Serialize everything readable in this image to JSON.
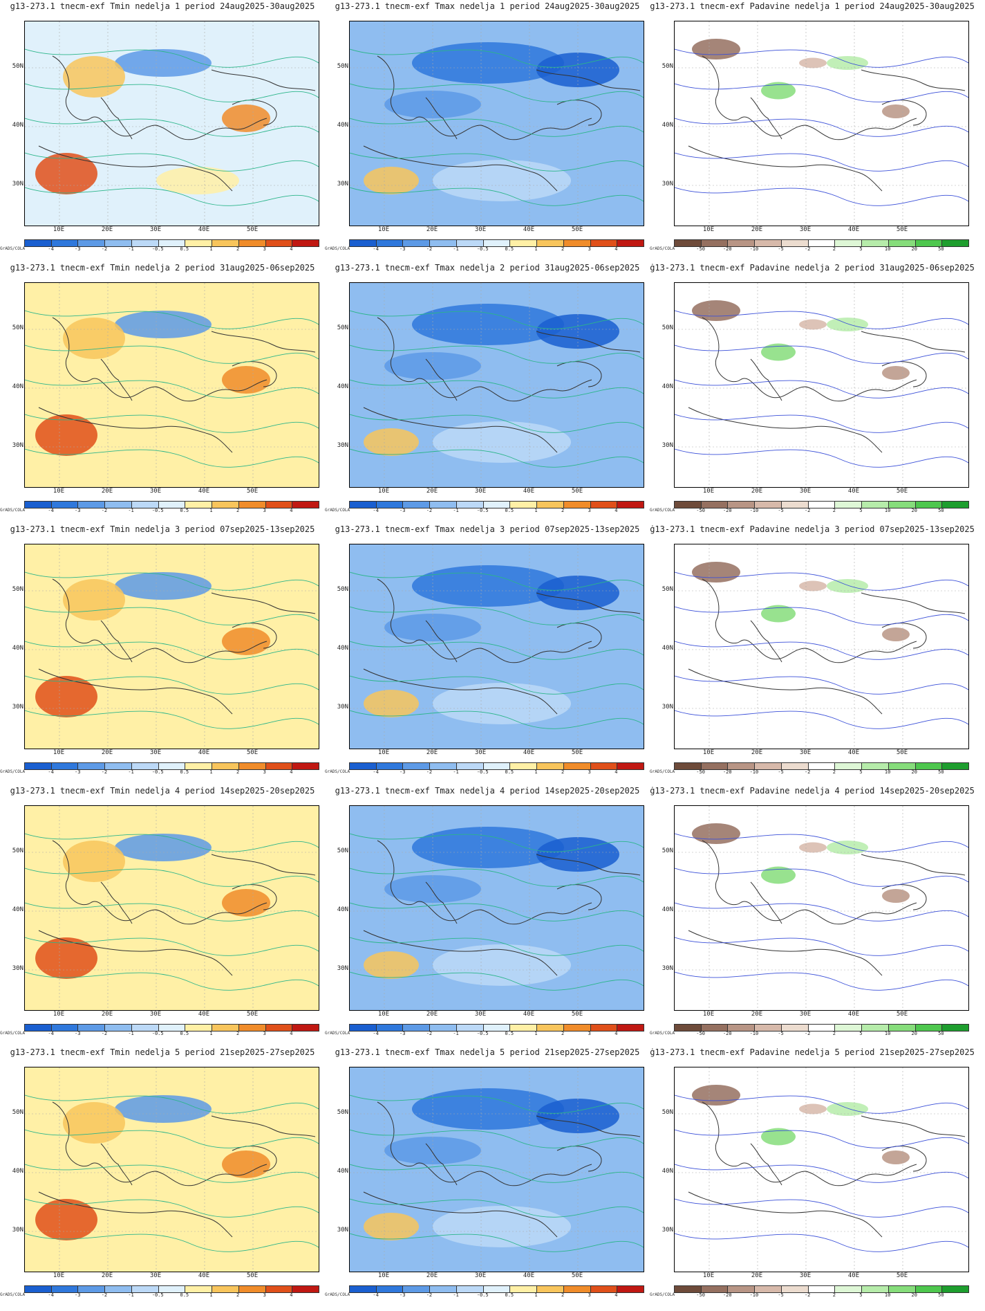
{
  "credit": "GrADS/COLA",
  "lat_labels": [
    "50N",
    "40N",
    "30N"
  ],
  "lon_labels": [
    "10E",
    "20E",
    "30E",
    "40E",
    "50E"
  ],
  "colorbars": {
    "temp": {
      "labels": [
        "-4",
        "-3",
        "-2",
        "-1",
        "-0.5",
        "0.5",
        "1",
        "2",
        "3",
        "4"
      ],
      "colors": [
        "#1a5fd0",
        "#2f78dc",
        "#5d9ae6",
        "#8fbdf0",
        "#bcd9f7",
        "#e0f1fb",
        "#fff0a6",
        "#f8c55c",
        "#f08c2a",
        "#e0501a",
        "#c01812"
      ]
    },
    "precip": {
      "labels": [
        "-50",
        "-20",
        "-10",
        "-5",
        "-2",
        "2",
        "5",
        "10",
        "20",
        "50"
      ],
      "colors": [
        "#6e4b3a",
        "#957060",
        "#b89585",
        "#d7b9aa",
        "#ecdccf",
        "#ffffff",
        "#def7d6",
        "#b6ecaa",
        "#86dd7b",
        "#4ec74e",
        "#1e9e2e"
      ]
    }
  },
  "panels": [
    {
      "var": "tmin",
      "title": "g13-273.1 tnecm-exf Tmin nedelja 1 period 24aug2025-30aug2025"
    },
    {
      "var": "tmax",
      "title": "g13-273.1 tnecm-exf Tmax nedelja 1 period 24aug2025-30aug2025"
    },
    {
      "var": "precip",
      "title": "g13-273.1 tnecm-exf Padavine nedelja 1 period 24aug2025-30aug2025"
    },
    {
      "var": "tmin",
      "title": "g13-273.1 tnecm-exf Tmin nedelja 2 period 31aug2025-06sep2025"
    },
    {
      "var": "tmax",
      "title": "g13-273.1 tnecm-exf Tmax nedelja 2 period 31aug2025-06sep2025"
    },
    {
      "var": "precip",
      "title": "ġ13-273.1 tnecm-exf Padavine nedelja 2 period 31aug2025-06sep2025"
    },
    {
      "var": "tmin",
      "title": "g13-273.1 tnecm-exf Tmin nedelja 3 period 07sep2025-13sep2025"
    },
    {
      "var": "tmax",
      "title": "g13-273.1 tnecm-exf Tmax nedelja 3 period 07sep2025-13sep2025"
    },
    {
      "var": "precip",
      "title": "ġ13-273.1 tnecm-exf Padavine nedelja 3 period 07sep2025-13sep2025"
    },
    {
      "var": "tmin",
      "title": "g13-273.1 tnecm-exf Tmin nedelja 4 period 14sep2025-20sep2025"
    },
    {
      "var": "tmax",
      "title": "g13-273.1 tnecm-exf Tmax nedelja 4 period 14sep2025-20sep2025"
    },
    {
      "var": "precip",
      "title": "ġ13-273.1 tnecm-exf Padavine nedelja 4 period 14sep2025-20sep2025"
    },
    {
      "var": "tmin",
      "title": "g13-273.1 tnecm-exf Tmin nedelja 5 period 21sep2025-27sep2025"
    },
    {
      "var": "tmax",
      "title": "g13-273.1 tnecm-exf Tmax nedelja 5 period 21sep2025-27sep2025"
    },
    {
      "var": "precip",
      "title": "ġ13-273.1 tnecm-exf Padavine nedelja 5 period 21sep2025-27sep2025"
    }
  ]
}
